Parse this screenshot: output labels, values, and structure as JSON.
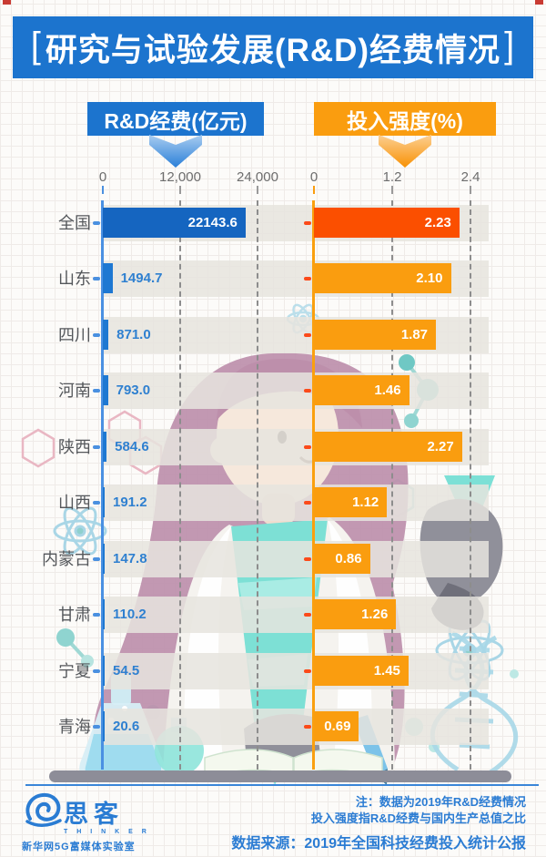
{
  "page": {
    "bracket_left": "[",
    "bracket_right": "]",
    "title": "研究与试验发展(R&D)经费情况"
  },
  "legends": {
    "left_label": "R&D经费(亿元)",
    "right_label": "投入强度(%)",
    "left_color": "#1c74ce",
    "right_color": "#fa9d0f"
  },
  "chart_data": {
    "type": "bar",
    "orientation": "horizontal",
    "categories": [
      "全国",
      "山东",
      "四川",
      "河南",
      "陕西",
      "山西",
      "内蒙古",
      "甘肃",
      "宁夏",
      "青海"
    ],
    "series": [
      {
        "name": "R&D经费(亿元)",
        "values": [
          22143.6,
          1494.7,
          871.0,
          793.0,
          584.6,
          191.2,
          147.8,
          110.2,
          54.5,
          20.6
        ],
        "value_labels": [
          "22143.6",
          "1494.7",
          "871.0",
          "793.0",
          "584.6",
          "191.2",
          "147.8",
          "110.2",
          "54.5",
          "20.6"
        ],
        "axis_ticks": [
          "0",
          "12,000",
          "24,000"
        ],
        "axis_max": 24000,
        "bar_color": "#1e78d2",
        "highlight_color": "#1565c0"
      },
      {
        "name": "投入强度(%)",
        "values": [
          2.23,
          2.1,
          1.87,
          1.46,
          2.27,
          1.12,
          0.86,
          1.26,
          1.45,
          0.69
        ],
        "value_labels": [
          "2.23",
          "2.10",
          "1.87",
          "1.46",
          "2.27",
          "1.12",
          "0.86",
          "1.26",
          "1.45",
          "0.69"
        ],
        "axis_ticks": [
          "0",
          "1.2",
          "2.4"
        ],
        "axis_max": 2.4,
        "bar_color": "#fa9d0f",
        "highlight_color": "#fb4f00"
      }
    ],
    "highlight_category": "全国",
    "grid": "dashed-vertical",
    "legend_position": "top"
  },
  "axes": {
    "left_ticks": [
      "0",
      "12,000",
      "24,000"
    ],
    "right_ticks": [
      "0",
      "1.2",
      "2.4"
    ]
  },
  "footer": {
    "note1": "注：数据为2019年R&D经费情况",
    "note2": "投入强度指R&D经费与国内生产总值之比",
    "source": "数据来源：2019年全国科技经费投入统计公报",
    "logo_name": "思客",
    "logo_en": "T H I N K E R",
    "logo_sub": "新华网5G富媒体实验室",
    "logo_color": "#2a7cd3"
  },
  "colors": {
    "banner_blue": "#1c74ce",
    "band_gray": "#e6e4de",
    "accent_red": "#c93b33",
    "value_text_blue": "#2f80d0"
  }
}
